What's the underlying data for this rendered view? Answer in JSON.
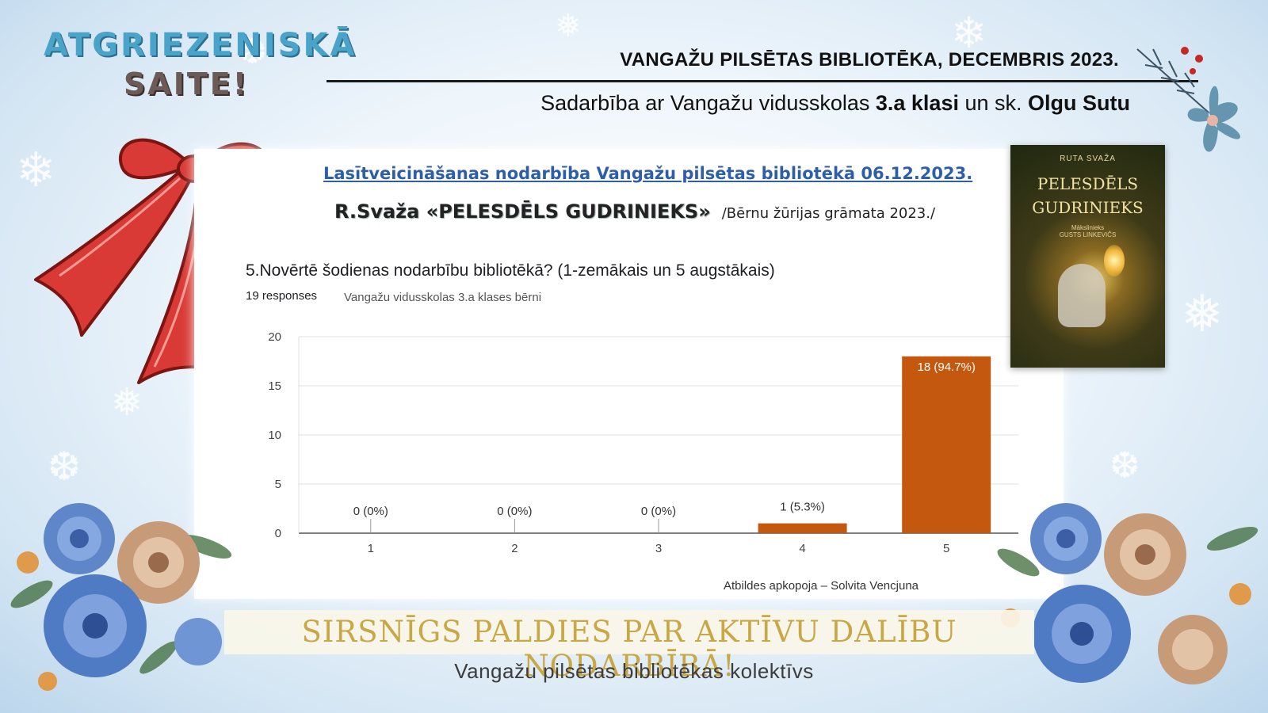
{
  "feedback_title": {
    "line1": "ATGRIEZENISKĀ",
    "line2": "SAITE!"
  },
  "header": {
    "title": "VANGAŽU PILSĒTAS BIBLIOTĒKA, DECEMBRIS 2023.",
    "sub_prefix": "Sadarbība ar Vangažu vidusskolas ",
    "sub_bold1": "3.a klasi",
    "sub_mid": " un sk. ",
    "sub_bold2": "Olgu Sutu"
  },
  "panel": {
    "event_title": "Lasītveicināšanas nodarbība Vangažu pilsētas bibliotēkā 06.12.2023.",
    "book_name": "R.Svaža «PELESDĒLS GUDRINIEKS»",
    "book_note": "/Bērnu žūrijas grāmata 2023./",
    "question": "5.Novērtē šodienas nodarbību bibliotēkā? (1-zemākais un 5 augstākais)",
    "responses": "19 responses",
    "subgroup": "Vangažu vidusskolas 3.a klases bērni",
    "credit": "Atbildes apkopoja – Solvita Vencjuna"
  },
  "book_cover": {
    "author": "RUTA SVAŽA",
    "title_line1": "PELESDĒLS",
    "title_line2": "GUDRINIEKS",
    "illustrator_line1": "Mākslinieks",
    "illustrator_line2": "GUSTS LINKEVIČS"
  },
  "chart_data": {
    "type": "bar",
    "categories": [
      "1",
      "2",
      "3",
      "4",
      "5"
    ],
    "values": [
      0,
      0,
      0,
      1,
      18
    ],
    "data_labels": [
      "0 (0%)",
      "0 (0%)",
      "0 (0%)",
      "1 (5.3%)",
      "18 (94.7%)"
    ],
    "yticks": [
      0,
      5,
      10,
      15,
      20
    ],
    "ylim": [
      0,
      20
    ],
    "title": "",
    "xlabel": "",
    "ylabel": "",
    "grid": true,
    "bar_color": "#c5580f"
  },
  "footer": {
    "thanks": "SIRSNĪGS PALDIES PAR AKTĪVU DALĪBU NODARBĪBĀ!",
    "signature": "Vangažu pilsētas bibliotēkas kolektīvs"
  },
  "colors": {
    "accent_blue": "#4aa3c8",
    "gold": "#c9a744",
    "link_blue": "#2e5ea8",
    "ribbon_red": "#d93a35"
  },
  "decorations": [
    "ribbon-bow",
    "snowflakes",
    "winter-roses",
    "berry-spray"
  ]
}
